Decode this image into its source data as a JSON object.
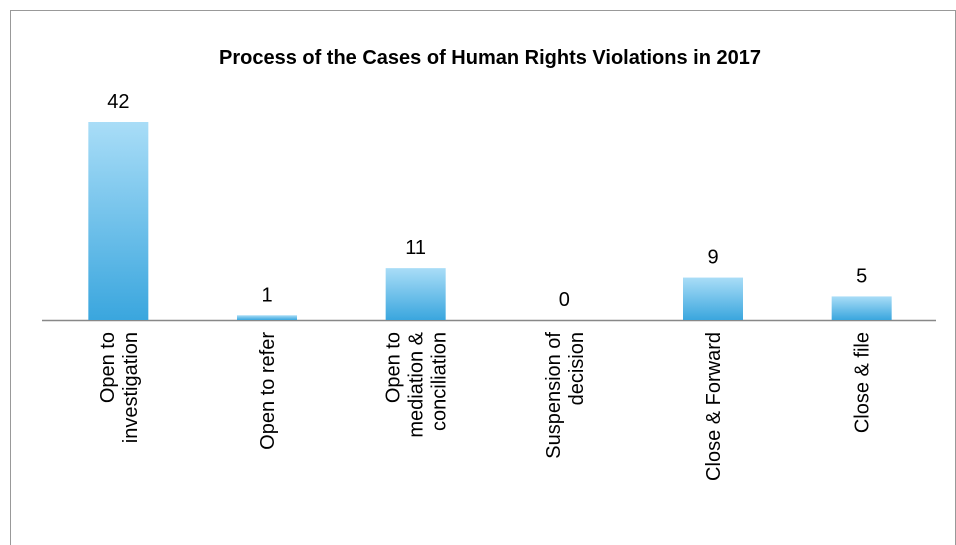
{
  "chart_data": {
    "type": "bar",
    "title": "Process of the Cases of Human Rights Violations in 2017",
    "categories": [
      "Open to\ninvestigation",
      "Open to refer",
      "Open to\nmediation &\nconciliation",
      "Suspension of\ndecision",
      "Close & Forward",
      "Close & file"
    ],
    "values": [
      42,
      1,
      11,
      0,
      9,
      5
    ],
    "color": "#5bbcec",
    "ylim": [
      0,
      42
    ]
  }
}
